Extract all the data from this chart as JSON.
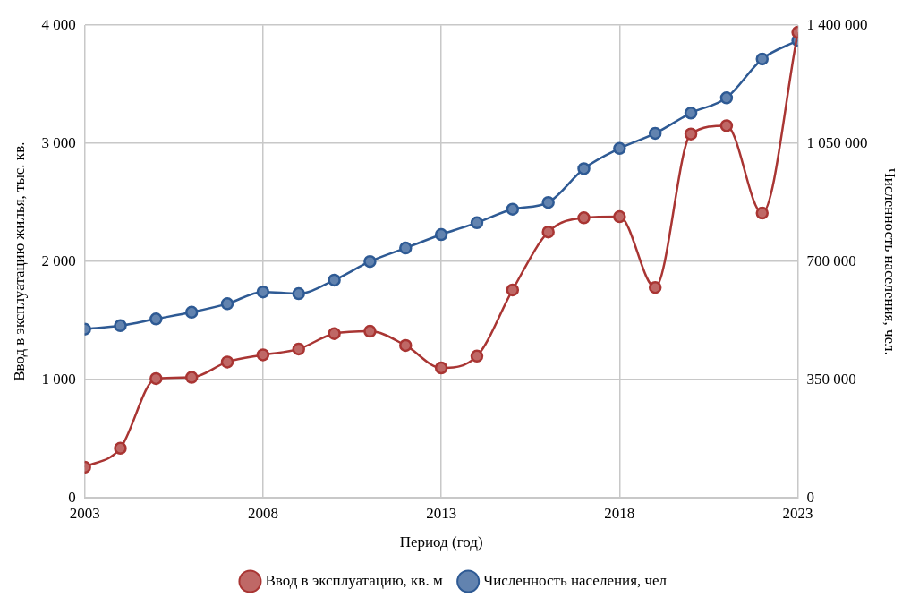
{
  "chart_data": {
    "type": "line",
    "xlabel": "Период (год)",
    "ylabel": "Ввод в эксплуатацию жилья, тыс. кв.",
    "y2label": "Численность населения, чел.",
    "x": [
      2003,
      2004,
      2005,
      2006,
      2007,
      2008,
      2009,
      2010,
      2011,
      2012,
      2013,
      2014,
      2015,
      2016,
      2017,
      2018,
      2019,
      2020,
      2021,
      2022,
      2023
    ],
    "xlim": [
      2003,
      2023
    ],
    "xticks": [
      2003,
      2008,
      2013,
      2018,
      2023
    ],
    "ylim": [
      0,
      4000
    ],
    "yticks": [
      {
        "value": 0,
        "label": "0"
      },
      {
        "value": 1000,
        "label": "1 000"
      },
      {
        "value": 2000,
        "label": "2 000"
      },
      {
        "value": 3000,
        "label": "3 000"
      },
      {
        "value": 4000,
        "label": "4 000"
      }
    ],
    "y2lim": [
      0,
      1400000
    ],
    "y2ticks": [
      {
        "value": 0,
        "label": "0"
      },
      {
        "value": 350000,
        "label": "350 000"
      },
      {
        "value": 700000,
        "label": "700 000"
      },
      {
        "value": 1050000,
        "label": "1 050 000"
      },
      {
        "value": 1400000,
        "label": "1 400 000"
      }
    ],
    "series": [
      {
        "name": "Ввод в эксплуатацию, кв. м",
        "color": "#a93533",
        "values": [
          260,
          420,
          1010,
          1020,
          1150,
          1210,
          1260,
          1390,
          1410,
          1290,
          1100,
          1200,
          1760,
          2250,
          2370,
          2380,
          1780,
          3080,
          3150,
          2410,
          3940
        ]
      },
      {
        "name": "Численность населения, чел",
        "color": "#2e5a94",
        "axis": "y2",
        "values": [
          500000,
          510000,
          530000,
          550000,
          575000,
          610000,
          605000,
          645000,
          700000,
          740000,
          780000,
          815000,
          855000,
          875000,
          975000,
          1035000,
          1080000,
          1140000,
          1185000,
          1300000,
          1355000
        ]
      }
    ],
    "grid": true,
    "legend": "bottom",
    "marker": "circle",
    "line_style": "solid"
  }
}
